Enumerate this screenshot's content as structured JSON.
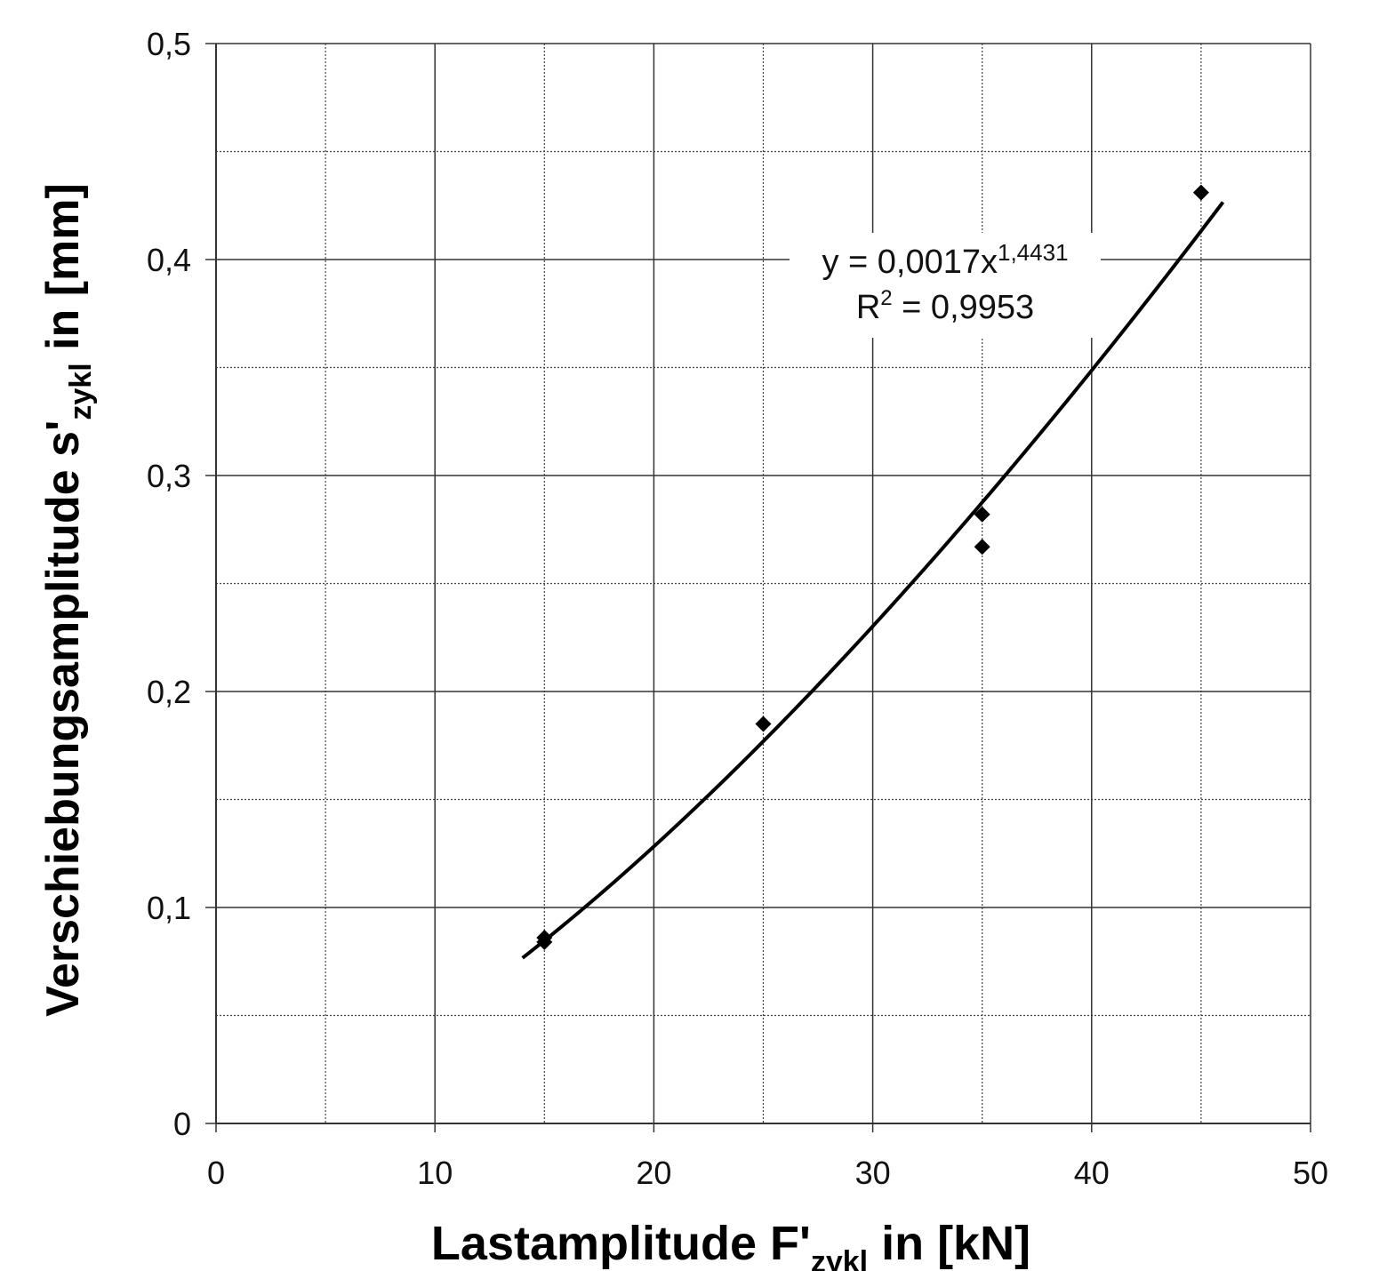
{
  "chart_data": {
    "type": "scatter",
    "xlabel": {
      "main": "Lastamplitude F'",
      "sub": "zykl",
      "unit": " in [kN]"
    },
    "ylabel": {
      "main": "Verschiebungsamplitude s'",
      "sub": "zykl",
      "unit": " in [mm]"
    },
    "xlim": [
      0,
      50
    ],
    "ylim": [
      0,
      0.5
    ],
    "x_ticks": [
      {
        "value": 0,
        "label": "0"
      },
      {
        "value": 10,
        "label": "10"
      },
      {
        "value": 20,
        "label": "20"
      },
      {
        "value": 30,
        "label": "30"
      },
      {
        "value": 40,
        "label": "40"
      },
      {
        "value": 50,
        "label": "50"
      }
    ],
    "y_ticks": [
      {
        "value": 0,
        "label": "0"
      },
      {
        "value": 0.1,
        "label": "0,1"
      },
      {
        "value": 0.2,
        "label": "0,2"
      },
      {
        "value": 0.3,
        "label": "0,3"
      },
      {
        "value": 0.4,
        "label": "0,4"
      },
      {
        "value": 0.5,
        "label": "0,5"
      }
    ],
    "minor_grid": {
      "x_step": 5,
      "y_step": 0.05
    },
    "grid": true,
    "series": [
      {
        "marker": "diamond",
        "color": "#000000",
        "points": [
          {
            "x": 15,
            "y": 0.084
          },
          {
            "x": 15,
            "y": 0.086
          },
          {
            "x": 25,
            "y": 0.185
          },
          {
            "x": 35,
            "y": 0.282
          },
          {
            "x": 35,
            "y": 0.267
          },
          {
            "x": 45,
            "y": 0.431
          }
        ]
      }
    ],
    "trendline": {
      "type": "power",
      "a": 0.0017,
      "b": 1.4431,
      "x_range": [
        14,
        46
      ],
      "color": "#000000",
      "equation": {
        "lhs": "y = 0,0017x",
        "exp": "1,4431"
      },
      "r2": {
        "lhs": "R",
        "exp": "2",
        "rhs": " = 0,9953"
      }
    }
  }
}
